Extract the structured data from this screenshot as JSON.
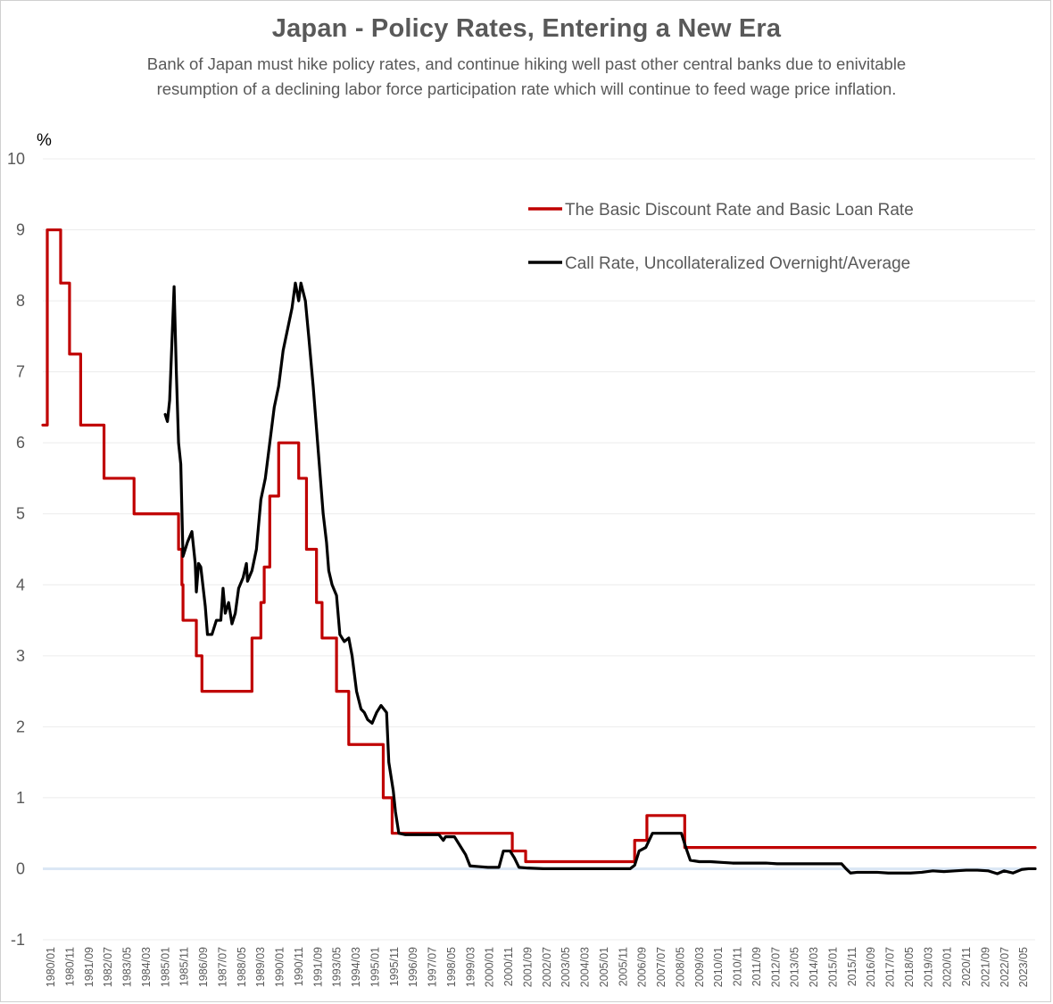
{
  "chart_data": {
    "type": "line",
    "title": "Japan - Policy Rates, Entering a New Era",
    "subtitle_lines": [
      "Bank of Japan must hike policy rates,  and continue hiking well past other central banks due to enivitable",
      "resumption of a declining labor force participation rate which will continue to feed wage price inflation."
    ],
    "ylabel": "%",
    "xlabel": "",
    "ylim": [
      -1,
      10
    ],
    "yticks": [
      "-1",
      "0",
      "1",
      "2",
      "3",
      "4",
      "5",
      "6",
      "7",
      "8",
      "9",
      "10"
    ],
    "grid": true,
    "legend_position": "top-right",
    "x_tick_labels": [
      "1980/01",
      "1980/11",
      "1981/09",
      "1982/07",
      "1983/05",
      "1984/03",
      "1985/01",
      "1985/11",
      "1986/09",
      "1987/07",
      "1988/05",
      "1989/03",
      "1990/01",
      "1990/11",
      "1991/09",
      "1993/05",
      "1994/03",
      "1995/01",
      "1995/11",
      "1996/09",
      "1997/07",
      "1998/05",
      "1999/03",
      "2000/01",
      "2000/11",
      "2001/09",
      "2002/07",
      "2003/05",
      "2004/03",
      "2005/01",
      "2005/11",
      "2006/09",
      "2007/07",
      "2008/05",
      "2009/03",
      "2010/01",
      "2010/11",
      "2011/09",
      "2012/07",
      "2013/05",
      "2014/03",
      "2015/01",
      "2015/11",
      "2016/09",
      "2017/07",
      "2018/05",
      "2019/03",
      "2020/01",
      "2020/11",
      "2021/09",
      "2022/07",
      "2023/05"
    ],
    "x_range": [
      1980.0,
      2024.6
    ],
    "series": [
      {
        "name": "The Basic Discount Rate and Basic Loan Rate",
        "color": "#c00000",
        "points": [
          [
            1980.0,
            6.25
          ],
          [
            1980.2,
            6.25
          ],
          [
            1980.2,
            9.0
          ],
          [
            1980.8,
            9.0
          ],
          [
            1980.8,
            8.25
          ],
          [
            1981.2,
            8.25
          ],
          [
            1981.2,
            7.25
          ],
          [
            1981.7,
            7.25
          ],
          [
            1981.7,
            6.25
          ],
          [
            1982.75,
            6.25
          ],
          [
            1982.75,
            5.5
          ],
          [
            1984.1,
            5.5
          ],
          [
            1984.1,
            5.0
          ],
          [
            1986.1,
            5.0
          ],
          [
            1986.1,
            4.5
          ],
          [
            1986.25,
            4.5
          ],
          [
            1986.25,
            4.0
          ],
          [
            1986.3,
            4.0
          ],
          [
            1986.3,
            3.5
          ],
          [
            1986.9,
            3.5
          ],
          [
            1986.9,
            3.0
          ],
          [
            1987.15,
            3.0
          ],
          [
            1987.15,
            2.5
          ],
          [
            1989.4,
            2.5
          ],
          [
            1989.4,
            3.25
          ],
          [
            1989.8,
            3.25
          ],
          [
            1989.8,
            3.75
          ],
          [
            1989.95,
            3.75
          ],
          [
            1989.95,
            4.25
          ],
          [
            1990.2,
            4.25
          ],
          [
            1990.2,
            5.25
          ],
          [
            1990.6,
            5.25
          ],
          [
            1990.6,
            6.0
          ],
          [
            1991.5,
            6.0
          ],
          [
            1991.5,
            5.5
          ],
          [
            1991.85,
            5.5
          ],
          [
            1991.85,
            4.5
          ],
          [
            1992.3,
            4.5
          ],
          [
            1992.3,
            3.75
          ],
          [
            1992.55,
            3.75
          ],
          [
            1992.55,
            3.25
          ],
          [
            1993.2,
            3.25
          ],
          [
            1993.2,
            2.5
          ],
          [
            1993.75,
            2.5
          ],
          [
            1993.75,
            1.75
          ],
          [
            1995.3,
            1.75
          ],
          [
            1995.3,
            1.0
          ],
          [
            1995.7,
            1.0
          ],
          [
            1995.7,
            0.5
          ],
          [
            2001.1,
            0.5
          ],
          [
            2001.1,
            0.25
          ],
          [
            2001.7,
            0.25
          ],
          [
            2001.7,
            0.1
          ],
          [
            2006.6,
            0.1
          ],
          [
            2006.6,
            0.4
          ],
          [
            2007.15,
            0.4
          ],
          [
            2007.15,
            0.75
          ],
          [
            2008.85,
            0.75
          ],
          [
            2008.85,
            0.3
          ],
          [
            2024.6,
            0.3
          ]
        ]
      },
      {
        "name": "Call Rate, Uncollateralized Overnight/Average",
        "color": "#000000",
        "points": [
          [
            1985.5,
            6.4
          ],
          [
            1985.6,
            6.3
          ],
          [
            1985.7,
            6.6
          ],
          [
            1985.9,
            8.2
          ],
          [
            1986.0,
            7.0
          ],
          [
            1986.1,
            6.0
          ],
          [
            1986.2,
            5.7
          ],
          [
            1986.3,
            4.4
          ],
          [
            1986.5,
            4.6
          ],
          [
            1986.7,
            4.75
          ],
          [
            1986.85,
            4.3
          ],
          [
            1986.9,
            3.9
          ],
          [
            1987.0,
            4.3
          ],
          [
            1987.1,
            4.25
          ],
          [
            1987.3,
            3.7
          ],
          [
            1987.4,
            3.3
          ],
          [
            1987.6,
            3.3
          ],
          [
            1987.8,
            3.5
          ],
          [
            1988.0,
            3.5
          ],
          [
            1988.1,
            3.95
          ],
          [
            1988.2,
            3.6
          ],
          [
            1988.35,
            3.75
          ],
          [
            1988.5,
            3.45
          ],
          [
            1988.65,
            3.6
          ],
          [
            1988.8,
            3.95
          ],
          [
            1989.0,
            4.1
          ],
          [
            1989.15,
            4.3
          ],
          [
            1989.2,
            4.05
          ],
          [
            1989.4,
            4.2
          ],
          [
            1989.6,
            4.5
          ],
          [
            1989.8,
            5.2
          ],
          [
            1990.0,
            5.5
          ],
          [
            1990.2,
            6.0
          ],
          [
            1990.4,
            6.5
          ],
          [
            1990.6,
            6.8
          ],
          [
            1990.8,
            7.3
          ],
          [
            1991.0,
            7.6
          ],
          [
            1991.2,
            7.9
          ],
          [
            1991.35,
            8.25
          ],
          [
            1991.5,
            8.0
          ],
          [
            1991.6,
            8.25
          ],
          [
            1991.8,
            8.0
          ],
          [
            1991.95,
            7.5
          ],
          [
            1992.15,
            6.8
          ],
          [
            1992.3,
            6.2
          ],
          [
            1992.45,
            5.6
          ],
          [
            1992.6,
            5.0
          ],
          [
            1992.75,
            4.6
          ],
          [
            1992.85,
            4.2
          ],
          [
            1993.0,
            4.0
          ],
          [
            1993.2,
            3.85
          ],
          [
            1993.35,
            3.3
          ],
          [
            1993.55,
            3.2
          ],
          [
            1993.75,
            3.25
          ],
          [
            1993.9,
            3.0
          ],
          [
            1994.1,
            2.5
          ],
          [
            1994.3,
            2.25
          ],
          [
            1994.45,
            2.2
          ],
          [
            1994.6,
            2.1
          ],
          [
            1994.8,
            2.05
          ],
          [
            1995.0,
            2.2
          ],
          [
            1995.2,
            2.3
          ],
          [
            1995.45,
            2.2
          ],
          [
            1995.55,
            1.5
          ],
          [
            1995.75,
            1.1
          ],
          [
            1995.85,
            0.8
          ],
          [
            1996.0,
            0.5
          ],
          [
            1996.3,
            0.48
          ],
          [
            1996.8,
            0.48
          ],
          [
            1997.3,
            0.48
          ],
          [
            1997.8,
            0.48
          ],
          [
            1998.0,
            0.4
          ],
          [
            1998.1,
            0.45
          ],
          [
            1998.5,
            0.45
          ],
          [
            1998.8,
            0.3
          ],
          [
            1999.0,
            0.2
          ],
          [
            1999.2,
            0.04
          ],
          [
            1999.6,
            0.03
          ],
          [
            2000.0,
            0.02
          ],
          [
            2000.5,
            0.02
          ],
          [
            2000.7,
            0.25
          ],
          [
            2001.0,
            0.25
          ],
          [
            2001.2,
            0.15
          ],
          [
            2001.4,
            0.02
          ],
          [
            2001.8,
            0.01
          ],
          [
            2002.5,
            0.001
          ],
          [
            2004.5,
            0.001
          ],
          [
            2006.4,
            0.001
          ],
          [
            2006.6,
            0.05
          ],
          [
            2006.8,
            0.25
          ],
          [
            2007.1,
            0.3
          ],
          [
            2007.4,
            0.5
          ],
          [
            2007.8,
            0.5
          ],
          [
            2008.3,
            0.5
          ],
          [
            2008.7,
            0.5
          ],
          [
            2008.9,
            0.3
          ],
          [
            2009.1,
            0.12
          ],
          [
            2009.5,
            0.1
          ],
          [
            2010.0,
            0.1
          ],
          [
            2010.5,
            0.09
          ],
          [
            2011.0,
            0.08
          ],
          [
            2011.5,
            0.08
          ],
          [
            2012.0,
            0.08
          ],
          [
            2012.5,
            0.08
          ],
          [
            2013.0,
            0.07
          ],
          [
            2013.5,
            0.07
          ],
          [
            2014.0,
            0.07
          ],
          [
            2014.5,
            0.07
          ],
          [
            2015.0,
            0.07
          ],
          [
            2015.5,
            0.07
          ],
          [
            2015.9,
            0.07
          ],
          [
            2016.1,
            0.0
          ],
          [
            2016.3,
            -0.06
          ],
          [
            2016.6,
            -0.05
          ],
          [
            2017.0,
            -0.05
          ],
          [
            2017.5,
            -0.05
          ],
          [
            2018.0,
            -0.06
          ],
          [
            2018.5,
            -0.06
          ],
          [
            2019.0,
            -0.06
          ],
          [
            2019.5,
            -0.05
          ],
          [
            2020.0,
            -0.03
          ],
          [
            2020.5,
            -0.04
          ],
          [
            2021.0,
            -0.03
          ],
          [
            2021.5,
            -0.02
          ],
          [
            2022.0,
            -0.02
          ],
          [
            2022.5,
            -0.03
          ],
          [
            2022.9,
            -0.07
          ],
          [
            2023.2,
            -0.03
          ],
          [
            2023.6,
            -0.06
          ],
          [
            2024.0,
            -0.01
          ],
          [
            2024.3,
            0.0
          ],
          [
            2024.6,
            0.0
          ]
        ]
      }
    ],
    "legend": [
      {
        "label": "The Basic Discount Rate and Basic Loan Rate",
        "color": "#c00000"
      },
      {
        "label": "Call Rate, Uncollateralized Overnight/Average",
        "color": "#000000"
      }
    ],
    "zero_line_color": "#dbe7f5"
  }
}
